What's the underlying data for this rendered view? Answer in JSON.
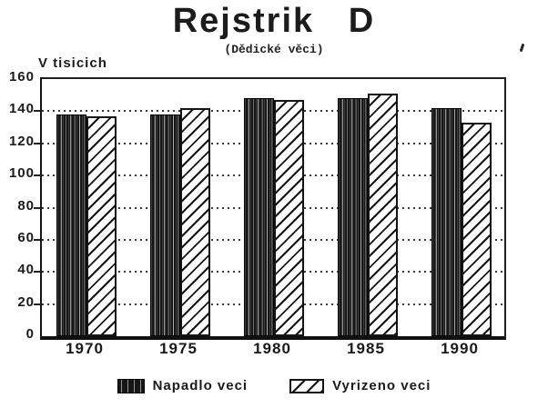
{
  "title": "Rejstrik   D",
  "subtitle": "(Dědické věci)",
  "ylabel": "V tisicich",
  "chart_data": {
    "type": "bar",
    "title": "Rejstrik D",
    "subtitle": "(Dědické věci)",
    "ylabel": "V tisicich",
    "xlabel": "",
    "categories": [
      "1970",
      "1975",
      "1980",
      "1985",
      "1990"
    ],
    "series": [
      {
        "name": "Napadlo veci",
        "pattern": "dark-vertical-streaks",
        "values": [
          138,
          138,
          148,
          148,
          142
        ]
      },
      {
        "name": "Vyrizeno veci",
        "pattern": "diagonal-hatch",
        "values": [
          137,
          142,
          147,
          151,
          133
        ]
      }
    ],
    "ylim": [
      0,
      160
    ],
    "yticks": [
      0,
      20,
      40,
      60,
      80,
      100,
      120,
      140,
      160
    ],
    "grid": "dotted-horizontal-every-20",
    "legend_position": "bottom",
    "style": "black-and-white scanned print"
  },
  "legend": {
    "items": [
      {
        "label": "Napadlo veci",
        "swatch": "dark"
      },
      {
        "label": "Vyrizeno veci",
        "swatch": "hatch"
      }
    ]
  },
  "colors": {
    "ink": "#161616",
    "background": "#ffffff"
  }
}
